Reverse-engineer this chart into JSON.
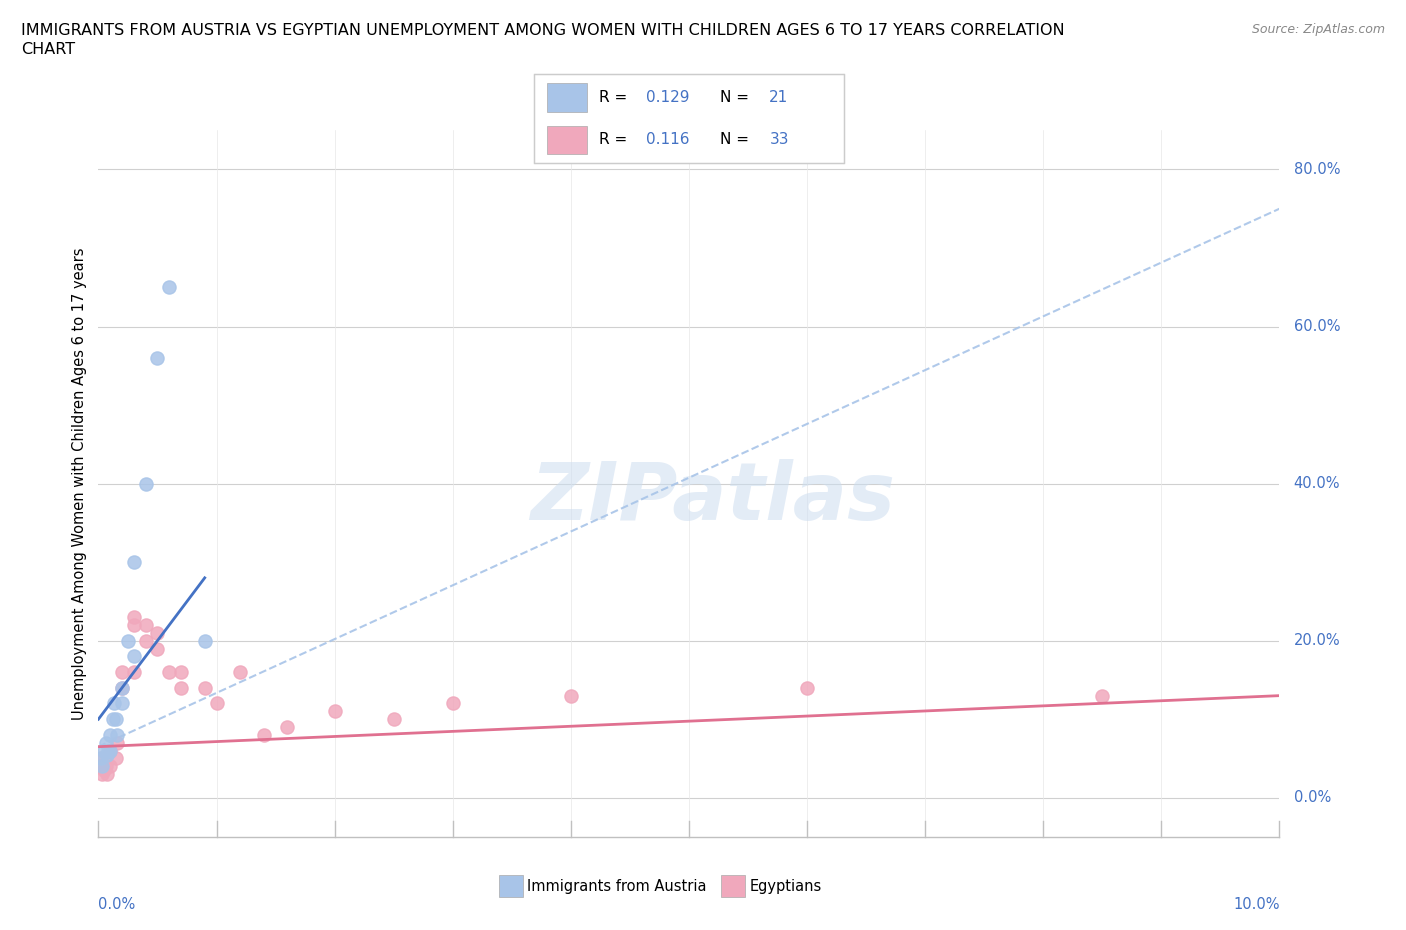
{
  "title_line1": "IMMIGRANTS FROM AUSTRIA VS EGYPTIAN UNEMPLOYMENT AMONG WOMEN WITH CHILDREN AGES 6 TO 17 YEARS CORRELATION",
  "title_line2": "CHART",
  "source": "Source: ZipAtlas.com",
  "ylabel": "Unemployment Among Women with Children Ages 6 to 17 years",
  "xlim": [
    0.0,
    0.1
  ],
  "ylim": [
    -0.05,
    0.85
  ],
  "yticks": [
    0.0,
    0.2,
    0.4,
    0.6,
    0.8
  ],
  "ytick_labels": [
    "0.0%",
    "20.0%",
    "40.0%",
    "60.0%",
    "80.0%"
  ],
  "austria_color": "#a8c4e8",
  "egypt_color": "#f0a8bc",
  "austria_line_color": "#4472c4",
  "egypt_line_color": "#e07090",
  "dash_line_color": "#a8c4e8",
  "watermark": "ZIPatlas",
  "austria_x": [
    0.0002,
    0.0003,
    0.0005,
    0.0006,
    0.0007,
    0.0008,
    0.001,
    0.001,
    0.0012,
    0.0013,
    0.0015,
    0.0016,
    0.002,
    0.002,
    0.0025,
    0.003,
    0.003,
    0.004,
    0.005,
    0.006,
    0.009
  ],
  "austria_y": [
    0.05,
    0.04,
    0.06,
    0.07,
    0.055,
    0.06,
    0.06,
    0.08,
    0.1,
    0.12,
    0.1,
    0.08,
    0.12,
    0.14,
    0.2,
    0.18,
    0.3,
    0.4,
    0.56,
    0.65,
    0.2
  ],
  "egypt_x": [
    0.0001,
    0.0002,
    0.0003,
    0.0005,
    0.0006,
    0.0007,
    0.001,
    0.001,
    0.0015,
    0.0016,
    0.002,
    0.002,
    0.003,
    0.003,
    0.003,
    0.004,
    0.004,
    0.005,
    0.005,
    0.006,
    0.007,
    0.007,
    0.009,
    0.01,
    0.012,
    0.014,
    0.016,
    0.02,
    0.025,
    0.03,
    0.04,
    0.06,
    0.085
  ],
  "egypt_y": [
    0.04,
    0.05,
    0.03,
    0.035,
    0.04,
    0.03,
    0.04,
    0.06,
    0.05,
    0.07,
    0.14,
    0.16,
    0.16,
    0.22,
    0.23,
    0.2,
    0.22,
    0.19,
    0.21,
    0.16,
    0.14,
    0.16,
    0.14,
    0.12,
    0.16,
    0.08,
    0.09,
    0.11,
    0.1,
    0.12,
    0.13,
    0.14,
    0.13
  ],
  "austria_trend_x": [
    0.0,
    0.009
  ],
  "austria_trend_y": [
    0.1,
    0.28
  ],
  "egypt_trend_x": [
    0.0,
    0.1
  ],
  "egypt_trend_y": [
    0.065,
    0.13
  ],
  "dash_trend_x": [
    0.0,
    0.1
  ],
  "dash_trend_y": [
    0.065,
    0.75
  ]
}
